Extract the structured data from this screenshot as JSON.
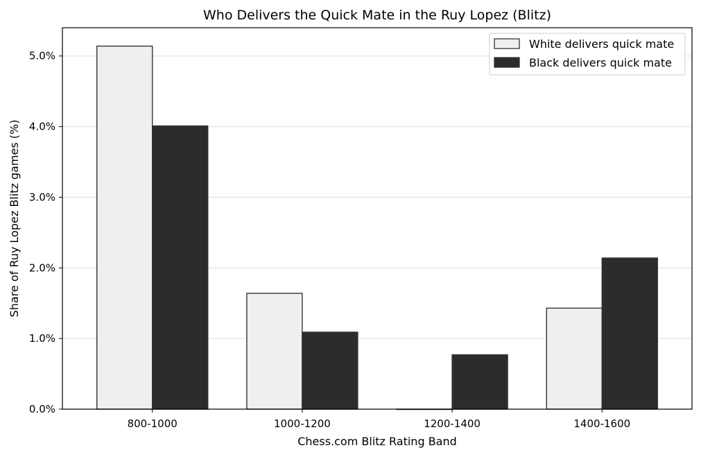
{
  "chart_data": {
    "type": "bar",
    "title": "Who Delivers the Quick Mate in the Ruy Lopez (Blitz)",
    "xlabel": "Chess.com Blitz Rating Band",
    "ylabel": "Share of Ruy Lopez Blitz games (%)",
    "categories": [
      "800-1000",
      "1000-1200",
      "1200-1400",
      "1400-1600"
    ],
    "series": [
      {
        "name": "White delivers quick mate",
        "values": [
          5.14,
          1.64,
          0.0,
          1.43
        ],
        "color": "#efefef"
      },
      {
        "name": "Black delivers quick mate",
        "values": [
          4.01,
          1.09,
          0.77,
          2.14
        ],
        "color": "#2c2c2c"
      }
    ],
    "ylim": [
      0,
      5.4
    ],
    "yticks": [
      0,
      1,
      2,
      3,
      4,
      5
    ],
    "ytick_labels": [
      "0.0%",
      "1.0%",
      "2.0%",
      "3.0%",
      "4.0%",
      "5.0%"
    ],
    "grid": "horizontal",
    "legend_position": "top-right",
    "edge_color": "#333333"
  }
}
